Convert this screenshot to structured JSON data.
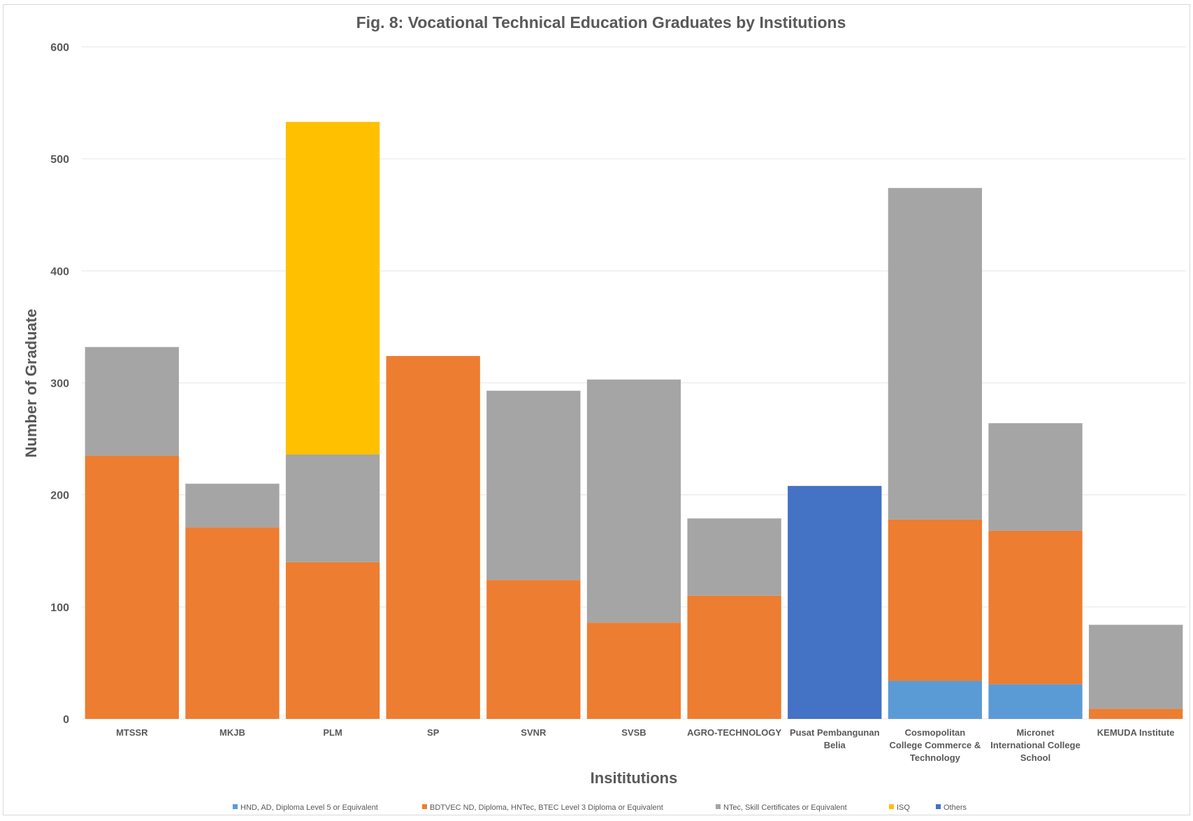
{
  "chart_data": {
    "type": "bar",
    "stacked": true,
    "title": "Fig. 8:  Vocational Technical Education Graduates by Institutions",
    "xlabel": "Insititutions",
    "ylabel": "Number of Graduate",
    "ylim": [
      0,
      600
    ],
    "yticks": [
      0,
      100,
      200,
      300,
      400,
      500,
      600
    ],
    "grid": true,
    "legend_position": "bottom",
    "categories": [
      [
        "MTSSR"
      ],
      [
        "MKJB"
      ],
      [
        "PLM"
      ],
      [
        "SP"
      ],
      [
        "SVNR"
      ],
      [
        "SVSB"
      ],
      [
        "AGRO-TECHNOLOGY"
      ],
      [
        "Pusat Pembangunan",
        "Belia"
      ],
      [
        "Cosmopolitan",
        "College Commerce &",
        "Technology"
      ],
      [
        "Micronet",
        "International College",
        "School"
      ],
      [
        "KEMUDA Institute"
      ]
    ],
    "series": [
      {
        "name": "HND, AD, Diploma Level 5 or Equivalent",
        "color": "#5b9bd5",
        "values": [
          0,
          0,
          0,
          0,
          0,
          0,
          0,
          0,
          34,
          31,
          0
        ]
      },
      {
        "name": "BDTVEC ND, Diploma, HNTec, BTEC Level 3 Diploma or Equivalent",
        "color": "#ed7d31",
        "values": [
          235,
          171,
          140,
          324,
          124,
          86,
          110,
          0,
          144,
          137,
          9
        ]
      },
      {
        "name": "NTec, Skill Certificates or Equivalent",
        "color": "#a5a5a5",
        "values": [
          97,
          39,
          96,
          0,
          169,
          217,
          69,
          0,
          296,
          96,
          75
        ]
      },
      {
        "name": "ISQ",
        "color": "#ffc000",
        "values": [
          0,
          0,
          297,
          0,
          0,
          0,
          0,
          0,
          0,
          0,
          0
        ]
      },
      {
        "name": "Others",
        "color": "#4472c4",
        "values": [
          0,
          0,
          0,
          0,
          0,
          0,
          0,
          208,
          0,
          0,
          0
        ]
      }
    ]
  }
}
